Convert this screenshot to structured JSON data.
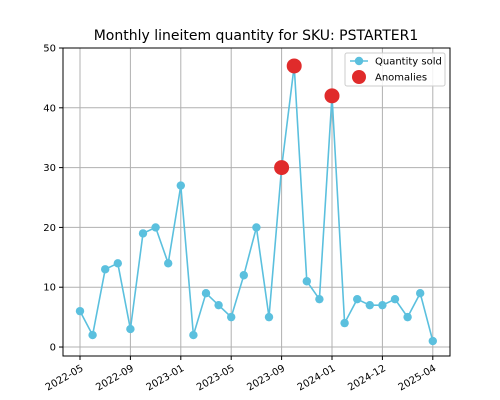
{
  "chart_data": {
    "type": "line",
    "title": "Monthly lineitem quantity for SKU: PSTARTER1",
    "xlabel": "",
    "ylabel": "",
    "ylim": [
      -1.5,
      50
    ],
    "yticks": [
      0,
      10,
      20,
      30,
      40,
      50
    ],
    "xtick_labels": [
      "2022-05",
      "2022-09",
      "2023-01",
      "2023-05",
      "2023-09",
      "2024-01",
      "2024-12",
      "2025-04"
    ],
    "grid": true,
    "legend": "top-right",
    "series": [
      {
        "name": "Quantity sold",
        "color": "#5bc0de",
        "marker": "circle",
        "points": [
          {
            "period": "2022-05",
            "value": 6
          },
          {
            "period": "2022-06",
            "value": 2
          },
          {
            "period": "2022-07",
            "value": 13
          },
          {
            "period": "2022-08",
            "value": 14
          },
          {
            "period": "2022-09",
            "value": 3
          },
          {
            "period": "2022-10",
            "value": 19
          },
          {
            "period": "2022-11",
            "value": 20
          },
          {
            "period": "2022-12",
            "value": 14
          },
          {
            "period": "2023-01",
            "value": 27
          },
          {
            "period": "2023-02",
            "value": 2
          },
          {
            "period": "2023-03",
            "value": 9
          },
          {
            "period": "2023-04",
            "value": 7
          },
          {
            "period": "2023-05",
            "value": 5
          },
          {
            "period": "2023-06",
            "value": 12
          },
          {
            "period": "2023-07",
            "value": 20
          },
          {
            "period": "2023-08",
            "value": 5
          },
          {
            "period": "2023-09",
            "value": 30
          },
          {
            "period": "2023-10",
            "value": 47
          },
          {
            "period": "2023-11",
            "value": 11
          },
          {
            "period": "2023-12",
            "value": 8
          },
          {
            "period": "2024-01",
            "value": 42
          },
          {
            "period": "2024-02",
            "value": 4
          },
          {
            "period": "2024-03",
            "value": 8
          },
          {
            "period": "2024-04",
            "value": 7
          },
          {
            "period": "2024-12",
            "value": 7
          },
          {
            "period": "2025-01",
            "value": 8
          },
          {
            "period": "2025-02",
            "value": 5
          },
          {
            "period": "2025-03",
            "value": 9
          },
          {
            "period": "2025-04",
            "value": 1
          }
        ]
      },
      {
        "name": "Anomalies",
        "color": "#e02b2b",
        "marker": "circle-large",
        "points": [
          {
            "period": "2023-09",
            "value": 30
          },
          {
            "period": "2023-10",
            "value": 47
          },
          {
            "period": "2024-01",
            "value": 42
          }
        ]
      }
    ]
  }
}
